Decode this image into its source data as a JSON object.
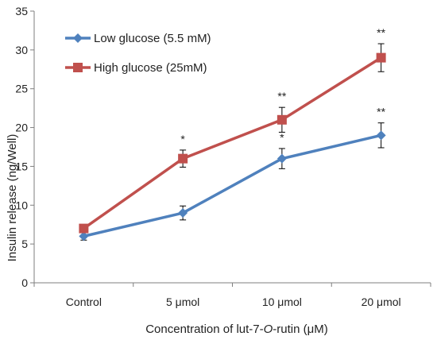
{
  "chart_data": {
    "type": "line",
    "categories": [
      "Control",
      "5 μmol",
      "10 μmol",
      "20 μmol"
    ],
    "xlabel_parts": [
      "Concentration of lut-7-",
      "O",
      "-rutin (μM)"
    ],
    "ylabel": "Insulin release (ng/Well)",
    "ylim": [
      0,
      35
    ],
    "yticks": [
      0,
      5,
      10,
      15,
      20,
      25,
      30,
      35
    ],
    "grid": false,
    "legend_position": "top-left",
    "series": [
      {
        "name": "Low glucose (5.5 mM)",
        "color": "#4f81bd",
        "marker": "diamond",
        "values": [
          6,
          9,
          16,
          19
        ],
        "errors": [
          0.5,
          0.9,
          1.3,
          1.6
        ],
        "annotations": [
          "",
          "",
          "*",
          "**"
        ]
      },
      {
        "name": "High glucose (25mM)",
        "color": "#c0504d",
        "marker": "square",
        "values": [
          7,
          16,
          21,
          29
        ],
        "errors": [
          0,
          1.1,
          1.6,
          1.8
        ],
        "annotations": [
          "",
          "*",
          "**",
          "**"
        ]
      }
    ]
  }
}
